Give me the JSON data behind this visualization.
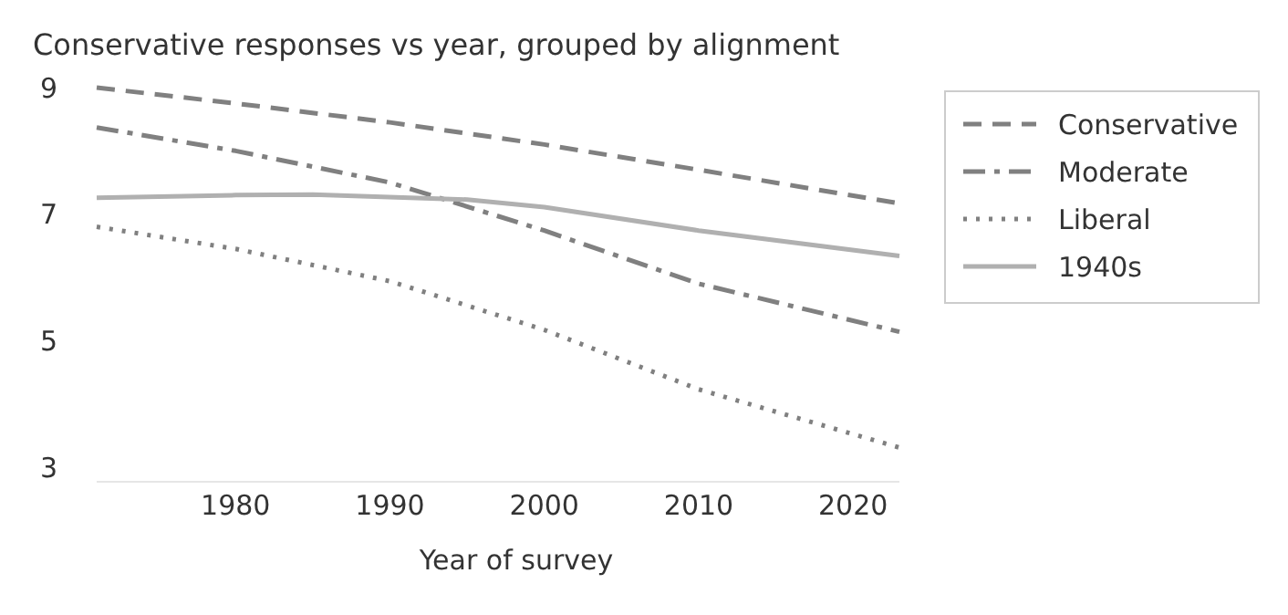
{
  "chart_data": {
    "type": "line",
    "title": "Conservative responses vs year, grouped by alignment",
    "xlabel": "Year of survey",
    "xlim": [
      1971,
      2023
    ],
    "ylim": [
      3,
      9
    ],
    "xticks": [
      1980,
      1990,
      2000,
      2010,
      2020
    ],
    "yticks": [
      3,
      5,
      7,
      9
    ],
    "grid": false,
    "legend": "top right",
    "marker": "none",
    "series": [
      {
        "name": "Conservative",
        "color": "#808080",
        "line_style": "dashed",
        "x": [
          1971,
          1980,
          1990,
          2000,
          2010,
          2023
        ],
        "values": [
          9.0,
          8.75,
          8.45,
          8.1,
          7.7,
          7.17
        ]
      },
      {
        "name": "Moderate",
        "color": "#808080",
        "line_style": "dashdot",
        "x": [
          1971,
          1980,
          1990,
          2000,
          2010,
          2023
        ],
        "values": [
          8.37,
          8.0,
          7.5,
          6.74,
          5.9,
          5.14
        ]
      },
      {
        "name": "Liberal",
        "color": "#808080",
        "line_style": "dotted",
        "x": [
          1971,
          1980,
          1990,
          2000,
          2010,
          2023
        ],
        "values": [
          6.8,
          6.45,
          5.94,
          5.17,
          4.23,
          3.31
        ]
      },
      {
        "name": "1940s",
        "color": "#b0b0b0",
        "line_style": "solid",
        "x": [
          1971,
          1980,
          1985,
          1995,
          2000,
          2010,
          2023
        ],
        "values": [
          7.26,
          7.3,
          7.31,
          7.23,
          7.11,
          6.74,
          6.34
        ]
      }
    ]
  }
}
